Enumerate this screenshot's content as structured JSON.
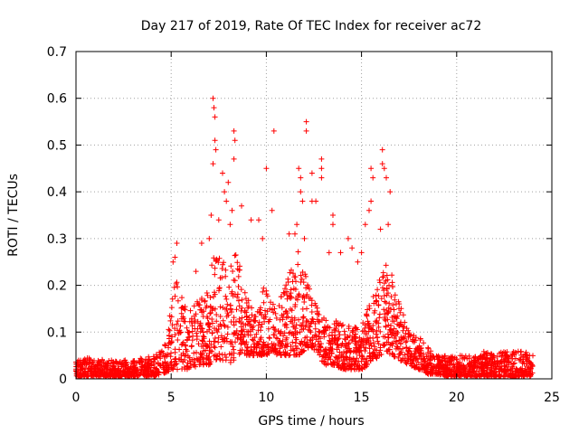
{
  "chart_data": {
    "type": "scatter",
    "title": "Day 217 of 2019, Rate Of TEC Index for receiver ac72",
    "xlabel": "GPS time / hours",
    "ylabel": "ROTI / TECUs",
    "xlim": [
      0,
      25
    ],
    "ylim": [
      0,
      0.7
    ],
    "xticks": [
      0,
      5,
      10,
      15,
      20,
      25
    ],
    "yticks": [
      0,
      0.1,
      0.2,
      0.3,
      0.4,
      0.5,
      0.6,
      0.7
    ],
    "xtick_labels": [
      "0",
      "5",
      "10",
      "15",
      "20",
      "25"
    ],
    "ytick_labels": [
      "0",
      "0.1",
      "0.2",
      "0.3",
      "0.4",
      "0.5",
      "0.6",
      "0.7"
    ],
    "grid": true,
    "marker": "plus",
    "color": "#ff0000",
    "envelope": [
      [
        0.0,
        0.005,
        0.04
      ],
      [
        0.5,
        0.005,
        0.045
      ],
      [
        1.0,
        0.005,
        0.045
      ],
      [
        1.5,
        0.005,
        0.04
      ],
      [
        2.0,
        0.005,
        0.04
      ],
      [
        2.5,
        0.005,
        0.04
      ],
      [
        3.0,
        0.005,
        0.04
      ],
      [
        3.5,
        0.005,
        0.045
      ],
      [
        4.0,
        0.005,
        0.05
      ],
      [
        4.5,
        0.01,
        0.06
      ],
      [
        4.8,
        0.015,
        0.09
      ],
      [
        5.0,
        0.02,
        0.17
      ],
      [
        5.3,
        0.02,
        0.22
      ],
      [
        5.6,
        0.02,
        0.17
      ],
      [
        6.0,
        0.02,
        0.15
      ],
      [
        6.5,
        0.03,
        0.17
      ],
      [
        7.0,
        0.03,
        0.2
      ],
      [
        7.3,
        0.04,
        0.3
      ],
      [
        7.6,
        0.04,
        0.25
      ],
      [
        8.0,
        0.03,
        0.25
      ],
      [
        8.3,
        0.04,
        0.28
      ],
      [
        8.6,
        0.05,
        0.25
      ],
      [
        9.0,
        0.05,
        0.18
      ],
      [
        9.3,
        0.05,
        0.15
      ],
      [
        9.6,
        0.05,
        0.15
      ],
      [
        9.8,
        0.05,
        0.2
      ],
      [
        10.0,
        0.05,
        0.19
      ],
      [
        10.3,
        0.06,
        0.17
      ],
      [
        10.6,
        0.05,
        0.16
      ],
      [
        11.0,
        0.05,
        0.2
      ],
      [
        11.4,
        0.05,
        0.25
      ],
      [
        11.7,
        0.05,
        0.28
      ],
      [
        12.0,
        0.06,
        0.24
      ],
      [
        12.3,
        0.07,
        0.19
      ],
      [
        12.7,
        0.05,
        0.15
      ],
      [
        13.0,
        0.03,
        0.13
      ],
      [
        13.5,
        0.03,
        0.13
      ],
      [
        14.0,
        0.02,
        0.12
      ],
      [
        14.5,
        0.02,
        0.11
      ],
      [
        15.0,
        0.02,
        0.12
      ],
      [
        15.4,
        0.03,
        0.16
      ],
      [
        15.7,
        0.04,
        0.2
      ],
      [
        16.0,
        0.05,
        0.24
      ],
      [
        16.3,
        0.06,
        0.27
      ],
      [
        16.6,
        0.05,
        0.23
      ],
      [
        17.0,
        0.04,
        0.16
      ],
      [
        17.5,
        0.03,
        0.11
      ],
      [
        18.0,
        0.02,
        0.09
      ],
      [
        18.5,
        0.01,
        0.07
      ],
      [
        19.0,
        0.01,
        0.05
      ],
      [
        19.5,
        0.005,
        0.05
      ],
      [
        20.0,
        0.005,
        0.05
      ],
      [
        20.5,
        0.005,
        0.05
      ],
      [
        21.0,
        0.005,
        0.05
      ],
      [
        21.5,
        0.005,
        0.06
      ],
      [
        22.0,
        0.005,
        0.05
      ],
      [
        22.5,
        0.005,
        0.06
      ],
      [
        23.0,
        0.005,
        0.06
      ],
      [
        23.5,
        0.005,
        0.06
      ],
      [
        24.0,
        0.005,
        0.05
      ]
    ],
    "outliers": [
      [
        7.2,
        0.6
      ],
      [
        7.25,
        0.58
      ],
      [
        7.3,
        0.56
      ],
      [
        7.3,
        0.51
      ],
      [
        7.35,
        0.49
      ],
      [
        7.2,
        0.46
      ],
      [
        7.7,
        0.44
      ],
      [
        7.8,
        0.4
      ],
      [
        7.9,
        0.38
      ],
      [
        8.0,
        0.42
      ],
      [
        8.3,
        0.53
      ],
      [
        8.35,
        0.51
      ],
      [
        8.3,
        0.47
      ],
      [
        8.2,
        0.36
      ],
      [
        8.1,
        0.33
      ],
      [
        7.5,
        0.34
      ],
      [
        7.1,
        0.35
      ],
      [
        7.0,
        0.3
      ],
      [
        6.6,
        0.29
      ],
      [
        5.3,
        0.29
      ],
      [
        5.2,
        0.26
      ],
      [
        5.1,
        0.25
      ],
      [
        10.4,
        0.53
      ],
      [
        10.0,
        0.45
      ],
      [
        10.3,
        0.36
      ],
      [
        9.6,
        0.34
      ],
      [
        9.8,
        0.3
      ],
      [
        11.7,
        0.45
      ],
      [
        11.8,
        0.43
      ],
      [
        11.8,
        0.4
      ],
      [
        11.9,
        0.38
      ],
      [
        11.6,
        0.33
      ],
      [
        11.5,
        0.31
      ],
      [
        12.1,
        0.55
      ],
      [
        12.1,
        0.53
      ],
      [
        12.4,
        0.44
      ],
      [
        12.4,
        0.38
      ],
      [
        12.6,
        0.38
      ],
      [
        12.9,
        0.47
      ],
      [
        12.9,
        0.45
      ],
      [
        12.9,
        0.43
      ],
      [
        13.5,
        0.35
      ],
      [
        13.5,
        0.33
      ],
      [
        13.3,
        0.27
      ],
      [
        15.5,
        0.45
      ],
      [
        15.6,
        0.43
      ],
      [
        15.5,
        0.38
      ],
      [
        15.4,
        0.36
      ],
      [
        16.1,
        0.49
      ],
      [
        16.1,
        0.46
      ],
      [
        16.2,
        0.45
      ],
      [
        16.0,
        0.32
      ],
      [
        16.3,
        0.43
      ],
      [
        16.5,
        0.4
      ],
      [
        16.4,
        0.33
      ],
      [
        15.2,
        0.33
      ],
      [
        15.0,
        0.27
      ],
      [
        14.8,
        0.25
      ],
      [
        14.5,
        0.28
      ],
      [
        14.3,
        0.3
      ],
      [
        9.2,
        0.34
      ],
      [
        8.7,
        0.37
      ],
      [
        12.0,
        0.3
      ],
      [
        11.2,
        0.31
      ],
      [
        13.9,
        0.27
      ],
      [
        6.3,
        0.23
      ]
    ]
  }
}
